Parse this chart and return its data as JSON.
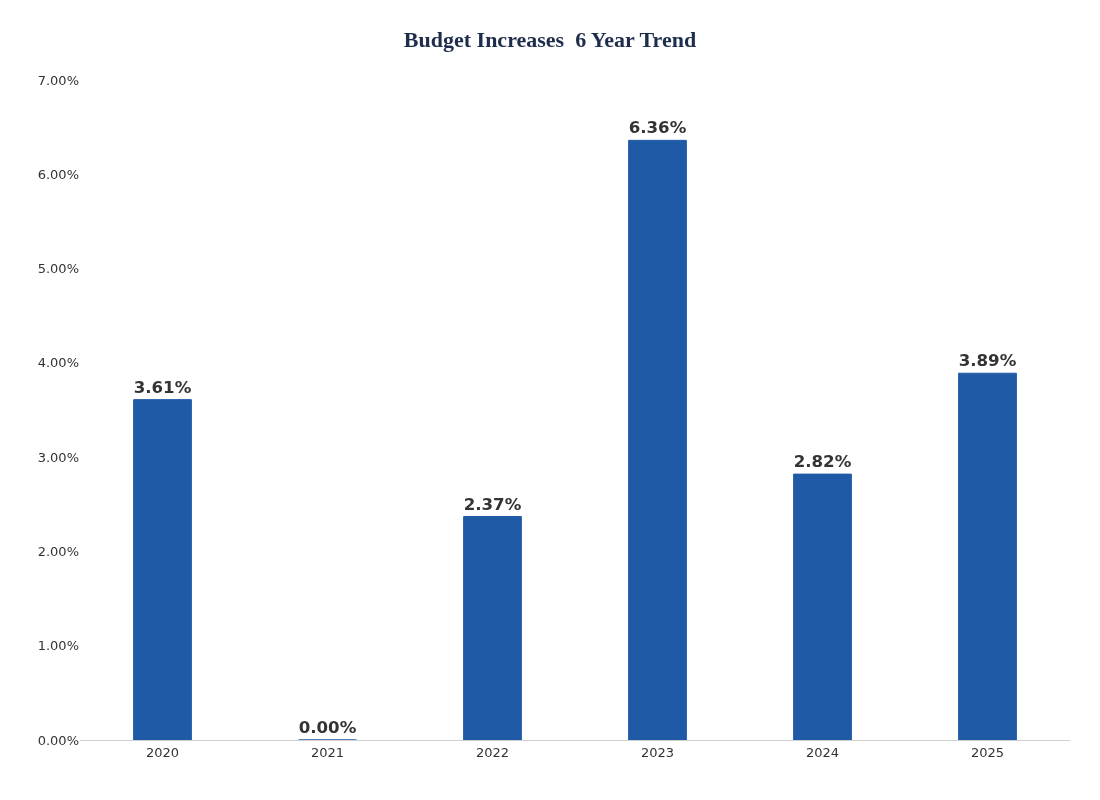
{
  "chart_data": {
    "type": "bar",
    "title": "Budget Increases  6 Year Trend",
    "categories": [
      "2020",
      "2021",
      "2022",
      "2023",
      "2024",
      "2025"
    ],
    "values": [
      3.61,
      0.0,
      2.37,
      6.36,
      2.82,
      3.89
    ],
    "value_labels": [
      "3.61%",
      "0.00%",
      "2.37%",
      "6.36%",
      "2.82%",
      "3.89%"
    ],
    "color": "#1f5aa6",
    "ylim": [
      0,
      7
    ],
    "yticks": [
      {
        "value": 0,
        "label": "0.00%"
      },
      {
        "value": 1,
        "label": "1.00%"
      },
      {
        "value": 2,
        "label": "2.00%"
      },
      {
        "value": 3,
        "label": "3.00%"
      },
      {
        "value": 4,
        "label": "4.00%"
      },
      {
        "value": 5,
        "label": "5.00%"
      },
      {
        "value": 6,
        "label": "6.00%"
      },
      {
        "value": 7,
        "label": "7.00%"
      }
    ]
  }
}
